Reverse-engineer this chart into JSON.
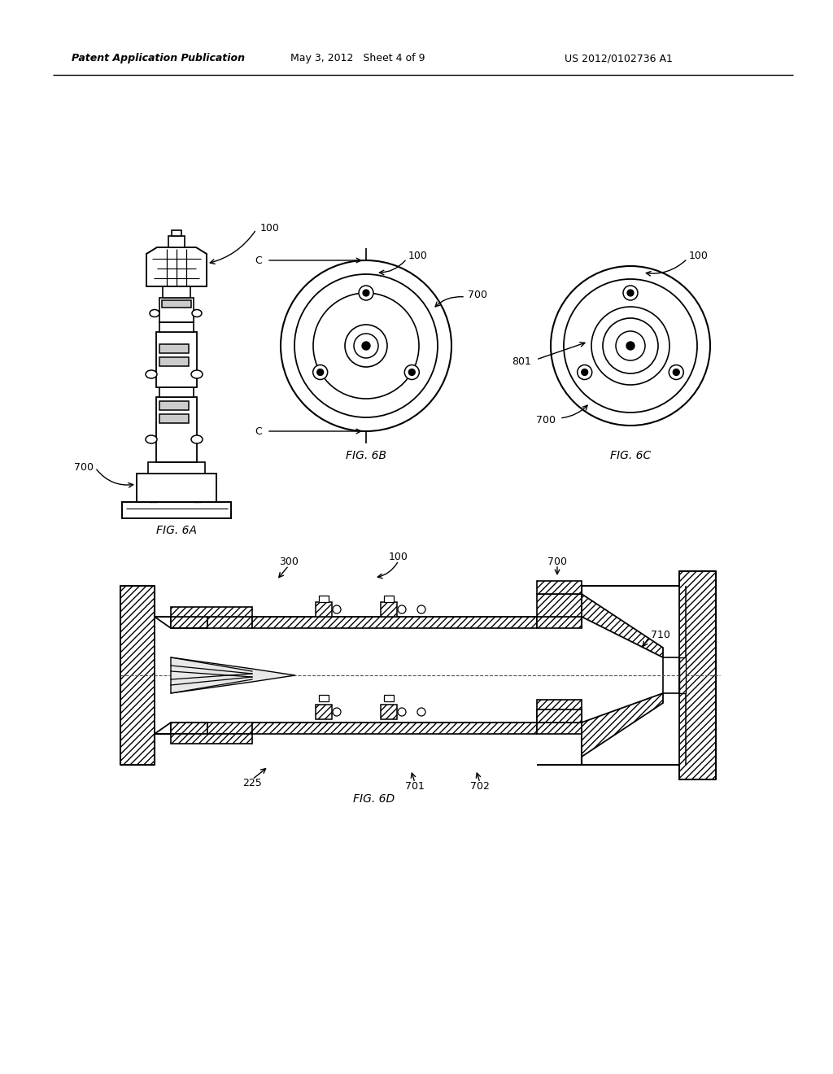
{
  "bg_color": "#ffffff",
  "line_color": "#000000",
  "header_left": "Patent Application Publication",
  "header_mid": "May 3, 2012   Sheet 4 of 9",
  "header_right": "US 2012/0102736 A1",
  "fig6a_label": "FIG. 6A",
  "fig6b_label": "FIG. 6B",
  "fig6c_label": "FIG. 6C",
  "fig6d_label": "FIG. 6D",
  "r100": "100",
  "r700": "700",
  "r300": "300",
  "r225": "225",
  "r701": "701",
  "r702": "702",
  "r710": "710",
  "r801": "801",
  "rC": "C"
}
